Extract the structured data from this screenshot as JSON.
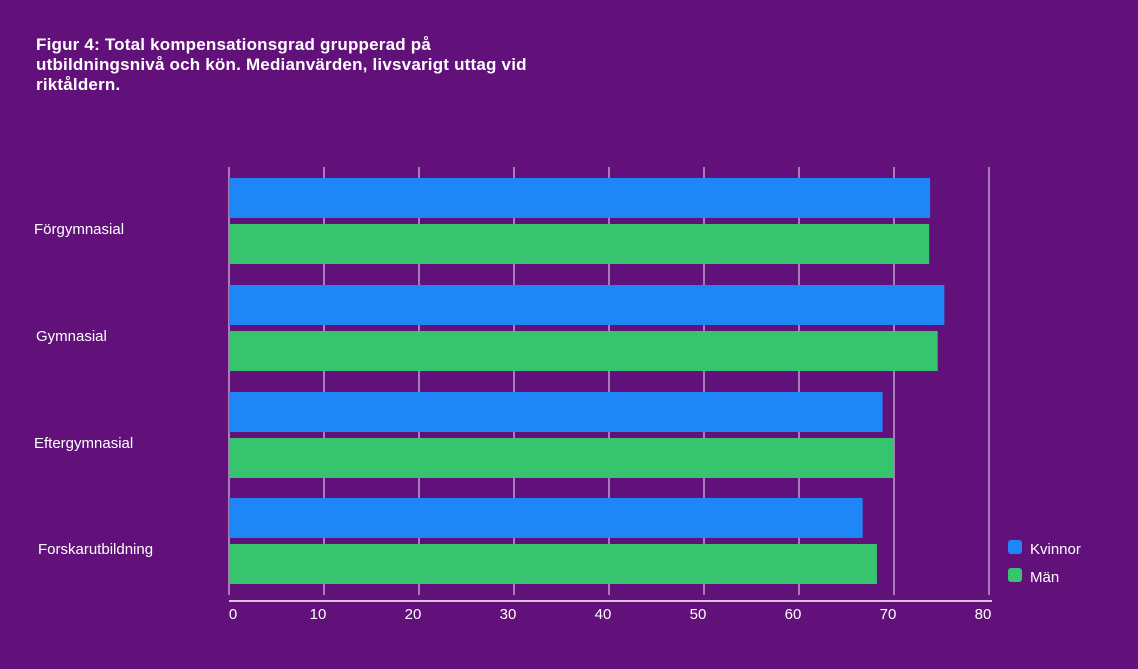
{
  "chart_data": {
    "type": "bar",
    "orientation": "horizontal",
    "title": "Figur 4: Total kompensationsgrad grupperad på utbildningsnivå och kön. Medianvärden, livsvarigt uttag vid riktåldern.",
    "categories": [
      "Förgymnasial",
      "Gymnasial",
      "Eftergymnasial",
      "Forskarutbildning"
    ],
    "series": [
      {
        "name": "Kvinnor",
        "color": "#1f86f7",
        "values": [
          73.8,
          75.3,
          68.8,
          66.7
        ]
      },
      {
        "name": "Män",
        "color": "#36c46f",
        "values": [
          73.7,
          74.6,
          70.0,
          68.2
        ]
      }
    ],
    "xticks": [
      0,
      10,
      20,
      30,
      40,
      50,
      60,
      70,
      80
    ],
    "xlim": [
      0,
      80
    ],
    "xlabel": "",
    "ylabel": "",
    "grid": true,
    "legend": "bottom-right"
  }
}
